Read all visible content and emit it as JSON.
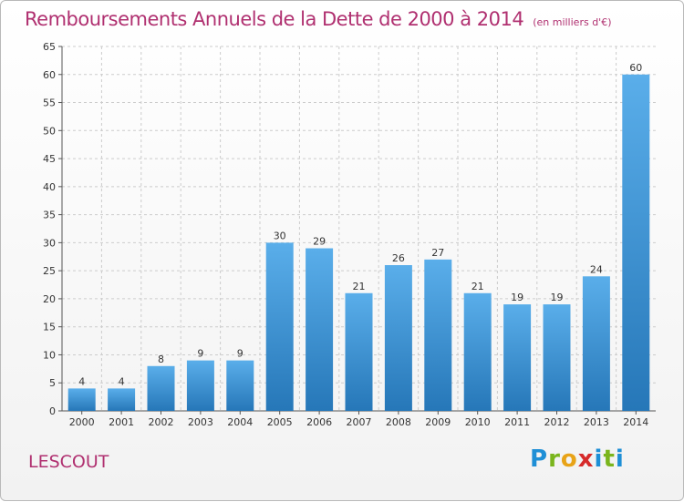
{
  "title": "Remboursements Annuels de la Dette de 2000 à 2014",
  "subtitle": "(en milliers d'€)",
  "commune": "LESCOUT",
  "logo": {
    "text": "Proxiti",
    "letters": [
      "P",
      "r",
      "o",
      "x",
      "i",
      "t",
      "i"
    ],
    "colors": [
      "#1e8fd6",
      "#7ab51d",
      "#e8a317",
      "#d62a2a",
      "#1e8fd6",
      "#7ab51d",
      "#1e8fd6"
    ]
  },
  "colors": {
    "bar_light": "#5aaeea",
    "bar_dark": "#2677b8",
    "title": "#b03070",
    "grid": "#cccccc"
  },
  "chart_data": {
    "type": "bar",
    "categories": [
      "2000",
      "2001",
      "2002",
      "2003",
      "2004",
      "2005",
      "2006",
      "2007",
      "2008",
      "2009",
      "2010",
      "2011",
      "2012",
      "2013",
      "2014"
    ],
    "values": [
      4,
      4,
      8,
      9,
      9,
      30,
      29,
      21,
      26,
      27,
      21,
      19,
      19,
      24,
      60
    ],
    "yticks": [
      0,
      5,
      10,
      15,
      20,
      25,
      30,
      35,
      40,
      45,
      50,
      55,
      60,
      65
    ],
    "ylim": [
      0,
      65
    ],
    "grid": true,
    "xlabel": "",
    "ylabel": ""
  }
}
